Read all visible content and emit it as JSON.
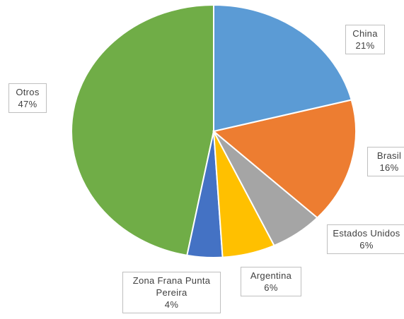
{
  "chart_data": {
    "type": "pie",
    "categories": [
      "China",
      "Brasil",
      "Estados Unidos",
      "Argentina",
      "Zona Frana Punta Pereira",
      "Otros"
    ],
    "values": [
      21,
      16,
      6,
      6,
      4,
      47
    ],
    "value_labels": [
      "21%",
      "16%",
      "6%",
      "6%",
      "4%",
      "47%"
    ],
    "colors": [
      "#5b9bd5",
      "#ed7d31",
      "#a5a5a5",
      "#ffc000",
      "#4472c4",
      "#70ad47"
    ]
  }
}
